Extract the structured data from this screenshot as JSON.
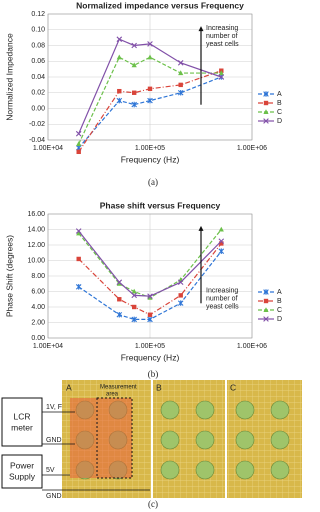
{
  "chart_data": [
    {
      "type": "line",
      "title": "Normalized impedance versus Frequency",
      "x_label": "Frequency (Hz)",
      "y_label": "Normalized Impedance",
      "x": [
        20000,
        50000,
        70000,
        100000,
        200000,
        500000
      ],
      "xscale": "log",
      "xlim": [
        10000,
        1000000
      ],
      "xticks": [
        {
          "value": 10000,
          "label": "1.00E+04"
        },
        {
          "value": 100000,
          "label": "1.00E+05"
        },
        {
          "value": 1000000,
          "label": "1.00E+06"
        }
      ],
      "ylim": [
        -0.04,
        0.12
      ],
      "yticks": [
        -0.04,
        -0.02,
        {
          "value": 0,
          "label": "0.00"
        },
        0.02,
        0.04,
        0.06,
        0.08,
        {
          "value": 0.1,
          "label": "0.10"
        },
        0.12
      ],
      "grid": true,
      "legend": "right",
      "annotation": [
        "Increasing",
        "number of",
        "yeast cells"
      ],
      "series": [
        {
          "name": "A",
          "color": "#2e75d6",
          "marker": "star",
          "dash": "4 2",
          "values": [
            -0.05,
            0.01,
            0.005,
            0.01,
            0.02,
            0.04
          ]
        },
        {
          "name": "B",
          "color": "#d9443a",
          "marker": "square",
          "dash": "5 2 1 2",
          "values": [
            -0.055,
            0.022,
            0.02,
            0.025,
            0.03,
            0.048
          ]
        },
        {
          "name": "C",
          "color": "#6cc04a",
          "marker": "triangle",
          "dash": "4 2",
          "values": [
            -0.045,
            0.065,
            0.055,
            0.065,
            0.045,
            0.045
          ]
        },
        {
          "name": "D",
          "color": "#8150a8",
          "marker": "cross",
          "dash": "none",
          "values": [
            -0.032,
            0.088,
            0.08,
            0.082,
            0.058,
            0.04
          ]
        }
      ]
    },
    {
      "type": "line",
      "title": "Phase shift versus Frequency",
      "x_label": "Frequency (Hz)",
      "y_label": "Phase Shift (degrees)",
      "x": [
        20000,
        50000,
        70000,
        100000,
        200000,
        500000
      ],
      "xscale": "log",
      "xlim": [
        10000,
        1000000
      ],
      "xticks": [
        {
          "value": 10000,
          "label": "1.00E+04"
        },
        {
          "value": 100000,
          "label": "1.00E+05"
        },
        {
          "value": 1000000,
          "label": "1.00E+06"
        }
      ],
      "ylim": [
        0,
        16
      ],
      "yticks": [
        {
          "value": 0,
          "label": "0.00"
        },
        {
          "value": 2,
          "label": "2.00"
        },
        {
          "value": 4,
          "label": "4.00"
        },
        {
          "value": 6,
          "label": "6.00"
        },
        {
          "value": 8,
          "label": "8.00"
        },
        {
          "value": 10,
          "label": "10.00"
        },
        {
          "value": 12,
          "label": "12.00"
        },
        {
          "value": 14,
          "label": "14.00"
        },
        {
          "value": 16,
          "label": "16.00"
        }
      ],
      "grid": true,
      "legend": "right",
      "annotation": [
        "Increasing",
        "number of",
        "yeast cells"
      ],
      "series": [
        {
          "name": "A",
          "color": "#2e75d6",
          "marker": "star",
          "dash": "4 2",
          "values": [
            6.6,
            3.0,
            2.4,
            2.4,
            4.5,
            11.2
          ]
        },
        {
          "name": "B",
          "color": "#d9443a",
          "marker": "square",
          "dash": "5 2 1 2",
          "values": [
            10.2,
            5.0,
            4.0,
            3.0,
            5.5,
            12.2
          ]
        },
        {
          "name": "C",
          "color": "#6cc04a",
          "marker": "triangle",
          "dash": "4 2",
          "values": [
            13.5,
            7.0,
            6.0,
            5.2,
            7.5,
            14.0
          ]
        },
        {
          "name": "D",
          "color": "#8150a8",
          "marker": "cross",
          "dash": "none",
          "values": [
            13.8,
            7.2,
            5.5,
            5.4,
            7.2,
            12.5
          ]
        }
      ]
    }
  ],
  "panel_labels": [
    "(a)",
    "(b)",
    "(c)"
  ],
  "photo": {
    "lcr": [
      "LCR",
      "meter"
    ],
    "power": [
      "Power",
      "Supply"
    ],
    "lcr_pins": [
      "1V, F",
      "GND"
    ],
    "power_pins": [
      "5V",
      "GND"
    ],
    "wells": [
      "A",
      "B",
      "C"
    ],
    "measurement": [
      "Measurement",
      "area"
    ]
  }
}
